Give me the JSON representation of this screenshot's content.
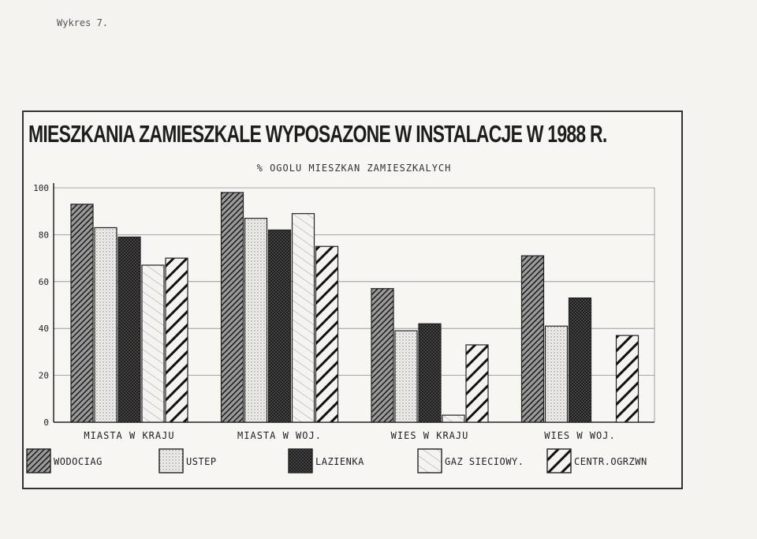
{
  "page": {
    "label": "Wykres 7."
  },
  "chart_data": {
    "type": "bar",
    "title": "MIESZKANIA ZAMIESZKALE WYPOSAZONE W INSTALACJE W 1988 R.",
    "subtitle": "% OGOLU MIESZKAN ZAMIESZKALYCH",
    "xlabel": "",
    "ylabel": "",
    "ylim": [
      0,
      100
    ],
    "yticks": [
      "0",
      "20",
      "40",
      "60",
      "80",
      "100"
    ],
    "grid": true,
    "legend_position": "bottom",
    "categories": [
      "MIASTA W KRAJU",
      "MIASTA W WOJ.",
      "WIES W KRAJU",
      "WIES W WOJ."
    ],
    "series": [
      {
        "name": "WODOCIAG",
        "values": [
          93,
          98,
          57,
          71
        ],
        "pattern": "dense-dark"
      },
      {
        "name": "USTEP",
        "values": [
          83,
          87,
          39,
          41
        ],
        "pattern": "light-dots"
      },
      {
        "name": "LAZIENKA",
        "values": [
          79,
          82,
          42,
          53
        ],
        "pattern": "cross-dark"
      },
      {
        "name": "GAZ SIECIOWY.",
        "values": [
          67,
          89,
          3,
          0
        ],
        "pattern": "light-diag"
      },
      {
        "name": "CENTR.OGRZWN",
        "values": [
          70,
          75,
          33,
          37
        ],
        "pattern": "bold-stripes"
      }
    ]
  }
}
